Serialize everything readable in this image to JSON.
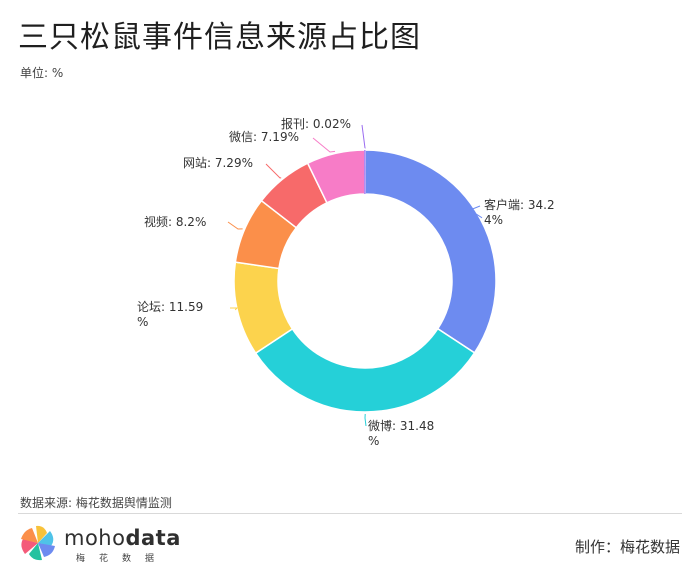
{
  "title": "三只松鼠事件信息来源占比图",
  "unit": "单位: %",
  "source": "数据来源: 梅花数据舆情监测",
  "footer": {
    "maker": "制作：梅花数据",
    "logo": {
      "name_part1": "moho",
      "name_part2": "data",
      "chinese": "梅花数据"
    }
  },
  "chart_data": {
    "type": "pie",
    "variant": "donut",
    "categories": [
      "客户端",
      "微博",
      "论坛",
      "视频",
      "网站",
      "微信",
      "报刊"
    ],
    "values": [
      34.24,
      31.48,
      11.59,
      8.2,
      7.29,
      7.19,
      0.02
    ],
    "labels": [
      [
        "客户端: 34.2",
        "4%"
      ],
      [
        "微博: 31.48",
        "%"
      ],
      [
        "论坛: 11.59",
        "%"
      ],
      [
        "视频: 8.2%"
      ],
      [
        "网站: 7.29%"
      ],
      [
        "微信: 7.19%"
      ],
      [
        "报刊: 0.02%"
      ]
    ],
    "colors": [
      "#6d8bf0",
      "#25d0d8",
      "#fcd34d",
      "#fb8f4a",
      "#f76a6a",
      "#f77cc7",
      "#9a6cf0"
    ],
    "start_angle": "12 o'clock",
    "direction": "clockwise"
  }
}
